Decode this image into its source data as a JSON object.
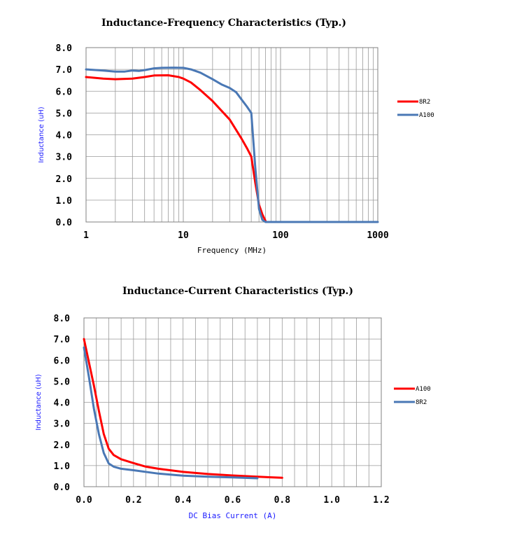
{
  "chart_data": [
    {
      "type": "line",
      "title": "Inductance-Frequency Characteristics (Typ.)",
      "xlabel": "Frequency (MHz)",
      "ylabel": "Inductance (uH)",
      "xscale": "log",
      "xlim": [
        1,
        1000
      ],
      "ylim": [
        0,
        8
      ],
      "xticks": [
        1,
        10,
        100,
        1000
      ],
      "xtick_labels": [
        "1",
        "10",
        "100",
        "1000"
      ],
      "yticks": [
        0,
        1,
        2,
        3,
        4,
        5,
        6,
        7,
        8
      ],
      "ytick_labels": [
        "0.0",
        "1.0",
        "2.0",
        "3.0",
        "4.0",
        "5.0",
        "6.0",
        "7.0",
        "8.0"
      ],
      "legend_position": "right",
      "series": [
        {
          "name": "8R2",
          "color": "#ff0000",
          "x": [
            1,
            1.5,
            2,
            3,
            4,
            5,
            7,
            9,
            10,
            12,
            15,
            20,
            30,
            40,
            45,
            50,
            55,
            60,
            65,
            70
          ],
          "y": [
            6.65,
            6.58,
            6.55,
            6.58,
            6.65,
            6.72,
            6.73,
            6.65,
            6.58,
            6.4,
            6.05,
            5.55,
            4.7,
            3.8,
            3.4,
            3.0,
            1.8,
            0.8,
            0.35,
            0.05
          ]
        },
        {
          "name": "A100",
          "color": "#4a78b5",
          "x": [
            1,
            1.5,
            2,
            2.5,
            3,
            3.5,
            4,
            5,
            6,
            8,
            10,
            12,
            15,
            20,
            25,
            30,
            35,
            40,
            45,
            50,
            55,
            60,
            65,
            70,
            100,
            200,
            500,
            1000
          ],
          "y": [
            7.0,
            6.95,
            6.9,
            6.9,
            6.95,
            6.93,
            6.97,
            7.05,
            7.07,
            7.08,
            7.07,
            7.0,
            6.85,
            6.55,
            6.3,
            6.15,
            5.95,
            5.6,
            5.3,
            5.0,
            2.5,
            0.6,
            0.1,
            0.0,
            0.0,
            0.0,
            0.0,
            0.0
          ]
        }
      ]
    },
    {
      "type": "line",
      "title": "Inductance-Current Characteristics (Typ.)",
      "xlabel": "DC Bias Current (A)",
      "ylabel": "Inductance (uH)",
      "xlim": [
        0,
        1.2
      ],
      "ylim": [
        0,
        8
      ],
      "xticks": [
        0,
        0.2,
        0.4,
        0.6,
        0.8,
        1.0,
        1.2
      ],
      "xtick_labels": [
        "0.0",
        "0.2",
        "0.4",
        "0.6",
        "0.8",
        "1.0",
        "1.2"
      ],
      "yticks": [
        0,
        1,
        2,
        3,
        4,
        5,
        6,
        7,
        8
      ],
      "ytick_labels": [
        "0.0",
        "1.0",
        "2.0",
        "3.0",
        "4.0",
        "5.0",
        "6.0",
        "7.0",
        "8.0"
      ],
      "legend_position": "right",
      "series": [
        {
          "name": "A100",
          "color": "#ff0000",
          "x": [
            0,
            0.02,
            0.04,
            0.06,
            0.08,
            0.1,
            0.12,
            0.15,
            0.2,
            0.25,
            0.3,
            0.4,
            0.5,
            0.6,
            0.7,
            0.8
          ],
          "y": [
            7.0,
            5.9,
            4.8,
            3.6,
            2.5,
            1.8,
            1.5,
            1.3,
            1.12,
            0.95,
            0.85,
            0.7,
            0.6,
            0.53,
            0.47,
            0.42
          ]
        },
        {
          "name": "8R2",
          "color": "#4a78b5",
          "x": [
            0,
            0.02,
            0.04,
            0.06,
            0.08,
            0.1,
            0.12,
            0.15,
            0.2,
            0.3,
            0.4,
            0.5,
            0.6,
            0.7
          ],
          "y": [
            6.6,
            5.2,
            3.7,
            2.5,
            1.6,
            1.1,
            0.95,
            0.85,
            0.78,
            0.62,
            0.52,
            0.47,
            0.44,
            0.4
          ]
        }
      ]
    }
  ]
}
